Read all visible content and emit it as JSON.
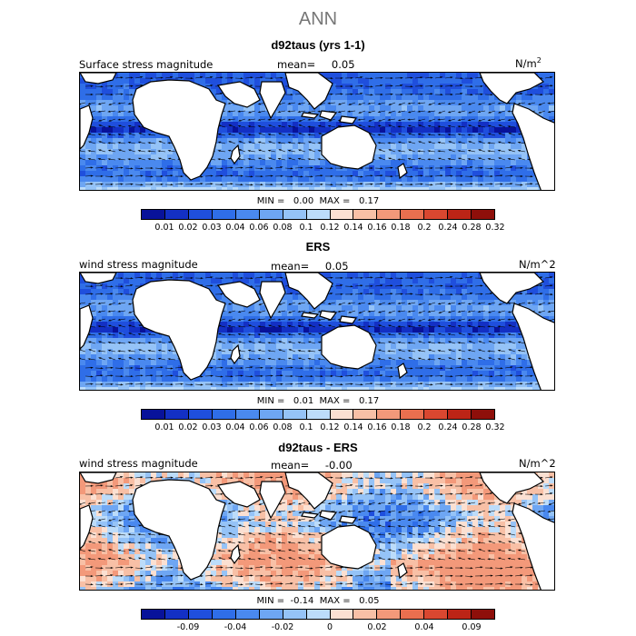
{
  "title": "ANN",
  "palette": [
    "#08129a",
    "#1330c4",
    "#1f4fdd",
    "#2f6ee8",
    "#4a89ef",
    "#6ea6f3",
    "#95c3f7",
    "#bcdcfa",
    "#fbe0d2",
    "#f8c0a6",
    "#f3997a",
    "#ea6f4f",
    "#d94730",
    "#bc2416",
    "#8e0f0a"
  ],
  "panels": [
    {
      "title": "d92taus (yrs 1-1)",
      "label": "Surface stress magnitude",
      "mean_label": "mean=",
      "mean_value": "0.05",
      "units": "N/m",
      "units_sup": "2",
      "minmax": "MIN =   0.00  MAX =   0.17",
      "ticks": [
        "0.01",
        "0.02",
        "0.03",
        "0.04",
        "0.06",
        "0.08",
        "0.1",
        "0.12",
        "0.14",
        "0.16",
        "0.18",
        "0.2",
        "0.24",
        "0.28",
        "0.32"
      ],
      "field_type": "magnitude"
    },
    {
      "title": "ERS",
      "label": "wind stress magnitude",
      "mean_label": "mean=",
      "mean_value": "0.05",
      "units": "N/m^2",
      "units_sup": "",
      "minmax": "MIN =   0.01  MAX =   0.17",
      "ticks": [
        "0.01",
        "0.02",
        "0.03",
        "0.04",
        "0.06",
        "0.08",
        "0.1",
        "0.12",
        "0.14",
        "0.16",
        "0.18",
        "0.2",
        "0.24",
        "0.28",
        "0.32"
      ],
      "field_type": "magnitude"
    },
    {
      "title": "d92taus - ERS",
      "label": "wind stress magnitude",
      "mean_label": "mean=",
      "mean_value": "-0.00",
      "units": "N/m^2",
      "units_sup": "",
      "minmax": "MIN =  -0.14  MAX =   0.05",
      "ticks": [
        "-0.09",
        "-0.04",
        "-0.02",
        "0",
        "0.02",
        "0.04",
        "0.09"
      ],
      "field_type": "difference"
    }
  ]
}
